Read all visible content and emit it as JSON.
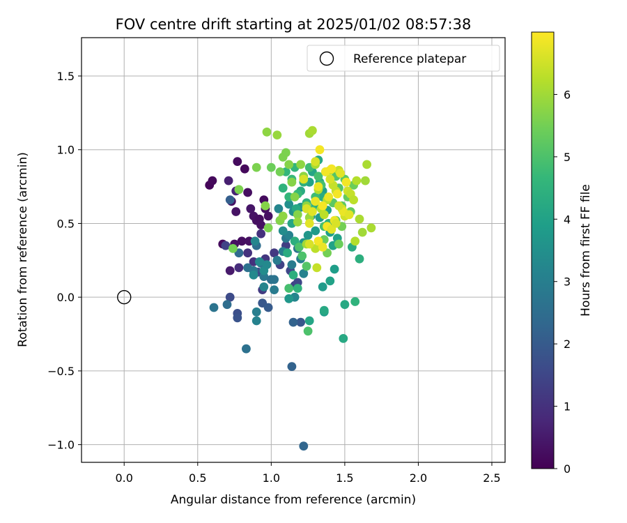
{
  "chart_data": {
    "type": "scatter",
    "title": "FOV centre drift starting at 2025/01/02 08:57:38",
    "xlabel": "Angular distance from reference (arcmin)",
    "ylabel": "Rotation from reference (arcmin)",
    "xlim": [
      -0.29,
      2.59
    ],
    "ylim": [
      -1.12,
      1.76
    ],
    "xticks": [
      0.0,
      0.5,
      1.0,
      1.5,
      2.0,
      2.5
    ],
    "xtick_labels": [
      "0.0",
      "0.5",
      "1.0",
      "1.5",
      "2.0",
      "2.5"
    ],
    "yticks": [
      -1.0,
      -0.5,
      0.0,
      0.5,
      1.0,
      1.5
    ],
    "ytick_labels": [
      "−1.0",
      "−0.5",
      "0.0",
      "0.5",
      "1.0",
      "1.5"
    ],
    "grid": true,
    "legend": {
      "placement": "upper-right",
      "entries": [
        "Reference platepar"
      ]
    },
    "reference_point": {
      "x": 0.0,
      "y": 0.0,
      "marker": "hollow-circle",
      "color": "#000000"
    },
    "colorbar": {
      "label": "Hours from first FF file",
      "colormap": "viridis",
      "range": [
        0,
        7
      ],
      "ticks": [
        0,
        1,
        2,
        3,
        4,
        5,
        6
      ],
      "tick_labels": [
        "0",
        "1",
        "2",
        "3",
        "4",
        "5",
        "6"
      ]
    },
    "series": [
      {
        "marker": "filled-circle",
        "points": [
          [
            0.58,
            0.76,
            0.1
          ],
          [
            0.6,
            0.79,
            0.15
          ],
          [
            0.67,
            0.36,
            0.2
          ],
          [
            0.71,
            0.79,
            0.6
          ],
          [
            0.73,
            0.65,
            0.3
          ],
          [
            0.75,
            0.36,
            0.3
          ],
          [
            0.76,
            0.58,
            0.35
          ],
          [
            0.77,
            0.92,
            0.2
          ],
          [
            0.8,
            0.38,
            0.25
          ],
          [
            0.82,
            0.87,
            0.15
          ],
          [
            0.84,
            0.71,
            0.25
          ],
          [
            0.85,
            0.38,
            0.3
          ],
          [
            0.86,
            0.6,
            0.4
          ],
          [
            0.88,
            0.55,
            0.35
          ],
          [
            0.9,
            0.52,
            0.3
          ],
          [
            0.92,
            0.53,
            0.25
          ],
          [
            0.93,
            0.49,
            0.3
          ],
          [
            0.95,
            0.66,
            0.2
          ],
          [
            0.96,
            0.6,
            0.25
          ],
          [
            0.98,
            0.55,
            0.3
          ],
          [
            0.72,
            0.18,
            0.5
          ],
          [
            0.76,
            0.72,
            0.7
          ],
          [
            0.78,
            0.2,
            0.9
          ],
          [
            0.84,
            0.3,
            1.0
          ],
          [
            0.88,
            0.24,
            1.0
          ],
          [
            0.93,
            0.43,
            1.0
          ],
          [
            0.96,
            0.26,
            1.1
          ],
          [
            1.02,
            0.3,
            1.2
          ],
          [
            0.94,
            0.05,
            1.2
          ],
          [
            0.69,
            0.35,
            1.4
          ],
          [
            0.72,
            0.0,
            1.6
          ],
          [
            0.77,
            -0.11,
            1.7
          ],
          [
            0.77,
            -0.14,
            1.8
          ],
          [
            0.72,
            0.66,
            2.1
          ],
          [
            0.91,
            0.17,
            1.6
          ],
          [
            0.94,
            -0.04,
            1.9
          ],
          [
            0.98,
            -0.07,
            2.0
          ],
          [
            1.06,
            0.22,
            1.4
          ],
          [
            1.1,
            0.35,
            1.3
          ],
          [
            1.13,
            0.18,
            1.5
          ],
          [
            1.16,
            0.08,
            1.4
          ],
          [
            1.18,
            0.1,
            1.5
          ],
          [
            1.2,
            -0.17,
            1.9
          ],
          [
            1.15,
            -0.17,
            2.2
          ],
          [
            1.14,
            -0.47,
            2.2
          ],
          [
            1.22,
            -1.01,
            2.3
          ],
          [
            0.7,
            -0.05,
            2.5
          ],
          [
            0.61,
            -0.07,
            2.7
          ],
          [
            0.83,
            -0.35,
            2.6
          ],
          [
            0.78,
            0.3,
            2.4
          ],
          [
            0.84,
            0.2,
            2.6
          ],
          [
            0.88,
            0.18,
            2.8
          ],
          [
            0.9,
            0.35,
            2.5
          ],
          [
            0.93,
            0.23,
            2.7
          ],
          [
            0.95,
            0.14,
            2.8
          ],
          [
            1.0,
            0.12,
            2.6
          ],
          [
            1.02,
            0.05,
            2.9
          ],
          [
            1.04,
            0.25,
            2.9
          ],
          [
            1.06,
            0.52,
            3.0
          ],
          [
            1.08,
            0.31,
            3.0
          ],
          [
            1.1,
            0.4,
            2.8
          ],
          [
            1.12,
            0.42,
            3.1
          ],
          [
            1.14,
            0.22,
            2.9
          ],
          [
            1.18,
            0.33,
            2.7
          ],
          [
            1.2,
            0.26,
            3.0
          ],
          [
            1.22,
            0.16,
            3.1
          ],
          [
            1.16,
            0.0,
            3.2
          ],
          [
            1.02,
            0.12,
            2.7
          ],
          [
            0.9,
            -0.1,
            3.0
          ],
          [
            0.9,
            -0.16,
            3.1
          ],
          [
            0.95,
            0.07,
            3.2
          ],
          [
            0.88,
            0.15,
            3.3
          ],
          [
            0.89,
            0.38,
            3.2
          ],
          [
            0.92,
            0.24,
            3.3
          ],
          [
            0.95,
            0.18,
            3.4
          ],
          [
            0.97,
            0.22,
            3.3
          ],
          [
            1.05,
            0.6,
            3.2
          ],
          [
            1.08,
            0.45,
            3.4
          ],
          [
            1.12,
            0.63,
            3.5
          ],
          [
            1.15,
            0.58,
            3.5
          ],
          [
            1.2,
            0.61,
            3.6
          ],
          [
            1.22,
            0.37,
            3.6
          ],
          [
            1.25,
            0.42,
            3.7
          ],
          [
            1.27,
            0.55,
            3.7
          ],
          [
            1.3,
            0.45,
            3.8
          ],
          [
            1.33,
            0.54,
            3.8
          ],
          [
            1.35,
            0.72,
            3.9
          ],
          [
            1.38,
            0.59,
            3.9
          ],
          [
            1.4,
            0.44,
            3.9
          ],
          [
            1.42,
            0.35,
            4.0
          ],
          [
            1.45,
            0.4,
            4.0
          ],
          [
            1.35,
            0.07,
            3.8
          ],
          [
            1.36,
            -0.1,
            3.9
          ],
          [
            1.4,
            0.11,
            4.0
          ],
          [
            1.43,
            0.19,
            3.9
          ],
          [
            1.12,
            -0.01,
            3.7
          ],
          [
            1.26,
            -0.16,
            4.1
          ],
          [
            1.36,
            -0.09,
            4.2
          ],
          [
            1.5,
            -0.05,
            4.2
          ],
          [
            1.49,
            -0.28,
            4.2
          ],
          [
            1.55,
            0.34,
            4.3
          ],
          [
            1.6,
            0.26,
            4.4
          ],
          [
            1.57,
            -0.03,
            4.5
          ],
          [
            1.26,
            0.78,
            4.0
          ],
          [
            1.28,
            0.85,
            4.1
          ],
          [
            1.3,
            0.63,
            4.2
          ],
          [
            1.32,
            0.93,
            4.2
          ],
          [
            1.33,
            0.78,
            4.3
          ],
          [
            1.35,
            0.68,
            4.3
          ],
          [
            1.37,
            0.85,
            4.4
          ],
          [
            1.39,
            0.5,
            4.4
          ],
          [
            1.14,
            0.5,
            4.1
          ],
          [
            1.17,
            0.6,
            4.2
          ],
          [
            1.2,
            0.72,
            4.3
          ],
          [
            1.22,
            0.78,
            4.4
          ],
          [
            1.24,
            0.64,
            4.5
          ],
          [
            1.16,
            0.38,
            4.4
          ],
          [
            1.11,
            0.3,
            4.3
          ],
          [
            1.15,
            0.15,
            4.4
          ],
          [
            1.18,
            0.06,
            4.5
          ],
          [
            1.08,
            0.74,
            4.5
          ],
          [
            1.1,
            0.85,
            4.6
          ],
          [
            1.12,
            0.68,
            4.6
          ],
          [
            1.14,
            0.8,
            4.7
          ],
          [
            1.16,
            0.88,
            4.6
          ],
          [
            1.18,
            0.7,
            4.7
          ],
          [
            1.26,
            0.88,
            4.8
          ],
          [
            1.28,
            0.59,
            4.8
          ],
          [
            1.3,
            0.68,
            4.8
          ],
          [
            1.32,
            0.82,
            4.9
          ],
          [
            1.34,
            0.76,
            4.9
          ],
          [
            1.36,
            0.48,
            4.9
          ],
          [
            1.12,
            0.06,
            4.9
          ],
          [
            1.25,
            -0.23,
            5.0
          ],
          [
            1.19,
            0.34,
            5.0
          ],
          [
            1.21,
            0.28,
            5.0
          ],
          [
            1.24,
            0.21,
            5.1
          ],
          [
            1.44,
            0.82,
            5.1
          ],
          [
            1.46,
            0.74,
            5.1
          ],
          [
            1.48,
            0.62,
            5.2
          ],
          [
            1.5,
            0.8,
            5.2
          ],
          [
            1.52,
            0.68,
            5.3
          ],
          [
            1.54,
            0.58,
            5.3
          ],
          [
            1.56,
            0.76,
            5.4
          ],
          [
            1.42,
            0.64,
            5.2
          ],
          [
            1.44,
            0.52,
            5.3
          ],
          [
            1.46,
            0.36,
            5.4
          ],
          [
            1.48,
            0.48,
            5.5
          ],
          [
            1.36,
            0.39,
            5.4
          ],
          [
            1.38,
            0.3,
            5.5
          ],
          [
            1.06,
            0.85,
            5.5
          ],
          [
            1.08,
            0.95,
            5.6
          ],
          [
            1.1,
            0.98,
            5.6
          ],
          [
            1.12,
            0.9,
            5.7
          ],
          [
            1.14,
            0.78,
            5.7
          ],
          [
            1.16,
            0.68,
            5.7
          ],
          [
            1.18,
            0.56,
            5.7
          ],
          [
            1.2,
            0.9,
            5.8
          ],
          [
            1.22,
            0.82,
            5.8
          ],
          [
            1.24,
            0.62,
            5.8
          ],
          [
            1.26,
            0.54,
            5.9
          ],
          [
            1.0,
            0.88,
            5.4
          ],
          [
            0.98,
            0.47,
            5.6
          ],
          [
            0.96,
            0.62,
            5.7
          ],
          [
            0.74,
            0.33,
            5.5
          ],
          [
            0.78,
            0.73,
            5.6
          ],
          [
            0.9,
            0.88,
            5.6
          ],
          [
            0.97,
            1.12,
            5.8
          ],
          [
            1.04,
            1.1,
            5.9
          ],
          [
            1.06,
            0.52,
            5.7
          ],
          [
            1.08,
            0.55,
            5.8
          ],
          [
            1.18,
            0.51,
            5.9
          ],
          [
            1.24,
            0.36,
            6.0
          ],
          [
            1.26,
            1.11,
            6.0
          ],
          [
            1.28,
            1.13,
            6.1
          ],
          [
            1.3,
            0.9,
            6.1
          ],
          [
            1.32,
            0.73,
            6.2
          ],
          [
            1.34,
            0.6,
            6.2
          ],
          [
            1.36,
            0.56,
            6.3
          ],
          [
            1.38,
            0.66,
            6.3
          ],
          [
            1.4,
            0.86,
            6.3
          ],
          [
            1.42,
            0.76,
            6.4
          ],
          [
            1.44,
            0.72,
            6.4
          ],
          [
            1.46,
            0.86,
            6.4
          ],
          [
            1.48,
            0.6,
            6.5
          ],
          [
            1.5,
            0.55,
            6.5
          ],
          [
            1.52,
            0.72,
            6.5
          ],
          [
            1.54,
            0.7,
            6.4
          ],
          [
            1.56,
            0.66,
            6.3
          ],
          [
            1.58,
            0.79,
            6.2
          ],
          [
            1.6,
            0.53,
            6.1
          ],
          [
            1.62,
            0.44,
            6.0
          ],
          [
            1.64,
            0.79,
            6.0
          ],
          [
            1.65,
            0.9,
            6.1
          ],
          [
            1.68,
            0.47,
            6.1
          ],
          [
            1.57,
            0.38,
            6.2
          ],
          [
            1.3,
            0.33,
            6.3
          ],
          [
            1.31,
            0.2,
            6.4
          ],
          [
            1.22,
            0.8,
            6.6
          ],
          [
            1.24,
            0.6,
            6.6
          ],
          [
            1.26,
            0.5,
            6.7
          ],
          [
            1.28,
            0.58,
            6.7
          ],
          [
            1.3,
            0.65,
            6.8
          ],
          [
            1.32,
            0.75,
            6.8
          ],
          [
            1.33,
            1.0,
            6.9
          ],
          [
            1.35,
            0.62,
            6.9
          ],
          [
            1.37,
            0.85,
            6.9
          ],
          [
            1.39,
            0.68,
            6.8
          ],
          [
            1.41,
            0.87,
            6.9
          ],
          [
            1.43,
            0.52,
            6.8
          ],
          [
            1.45,
            0.7,
            6.9
          ],
          [
            1.47,
            0.84,
            6.7
          ],
          [
            1.49,
            0.58,
            6.8
          ],
          [
            1.51,
            0.78,
            6.9
          ],
          [
            1.53,
            0.56,
            6.7
          ],
          [
            1.32,
            0.38,
            6.9
          ],
          [
            1.35,
            0.34,
            6.8
          ],
          [
            1.38,
            0.48,
            6.9
          ],
          [
            1.41,
            0.46,
            6.7
          ],
          [
            1.26,
            0.36,
            6.6
          ],
          [
            1.44,
            0.5,
            6.6
          ],
          [
            1.46,
            0.62,
            6.5
          ],
          [
            1.3,
            0.92,
            6.6
          ],
          [
            1.4,
            0.8,
            6.6
          ]
        ]
      }
    ]
  }
}
